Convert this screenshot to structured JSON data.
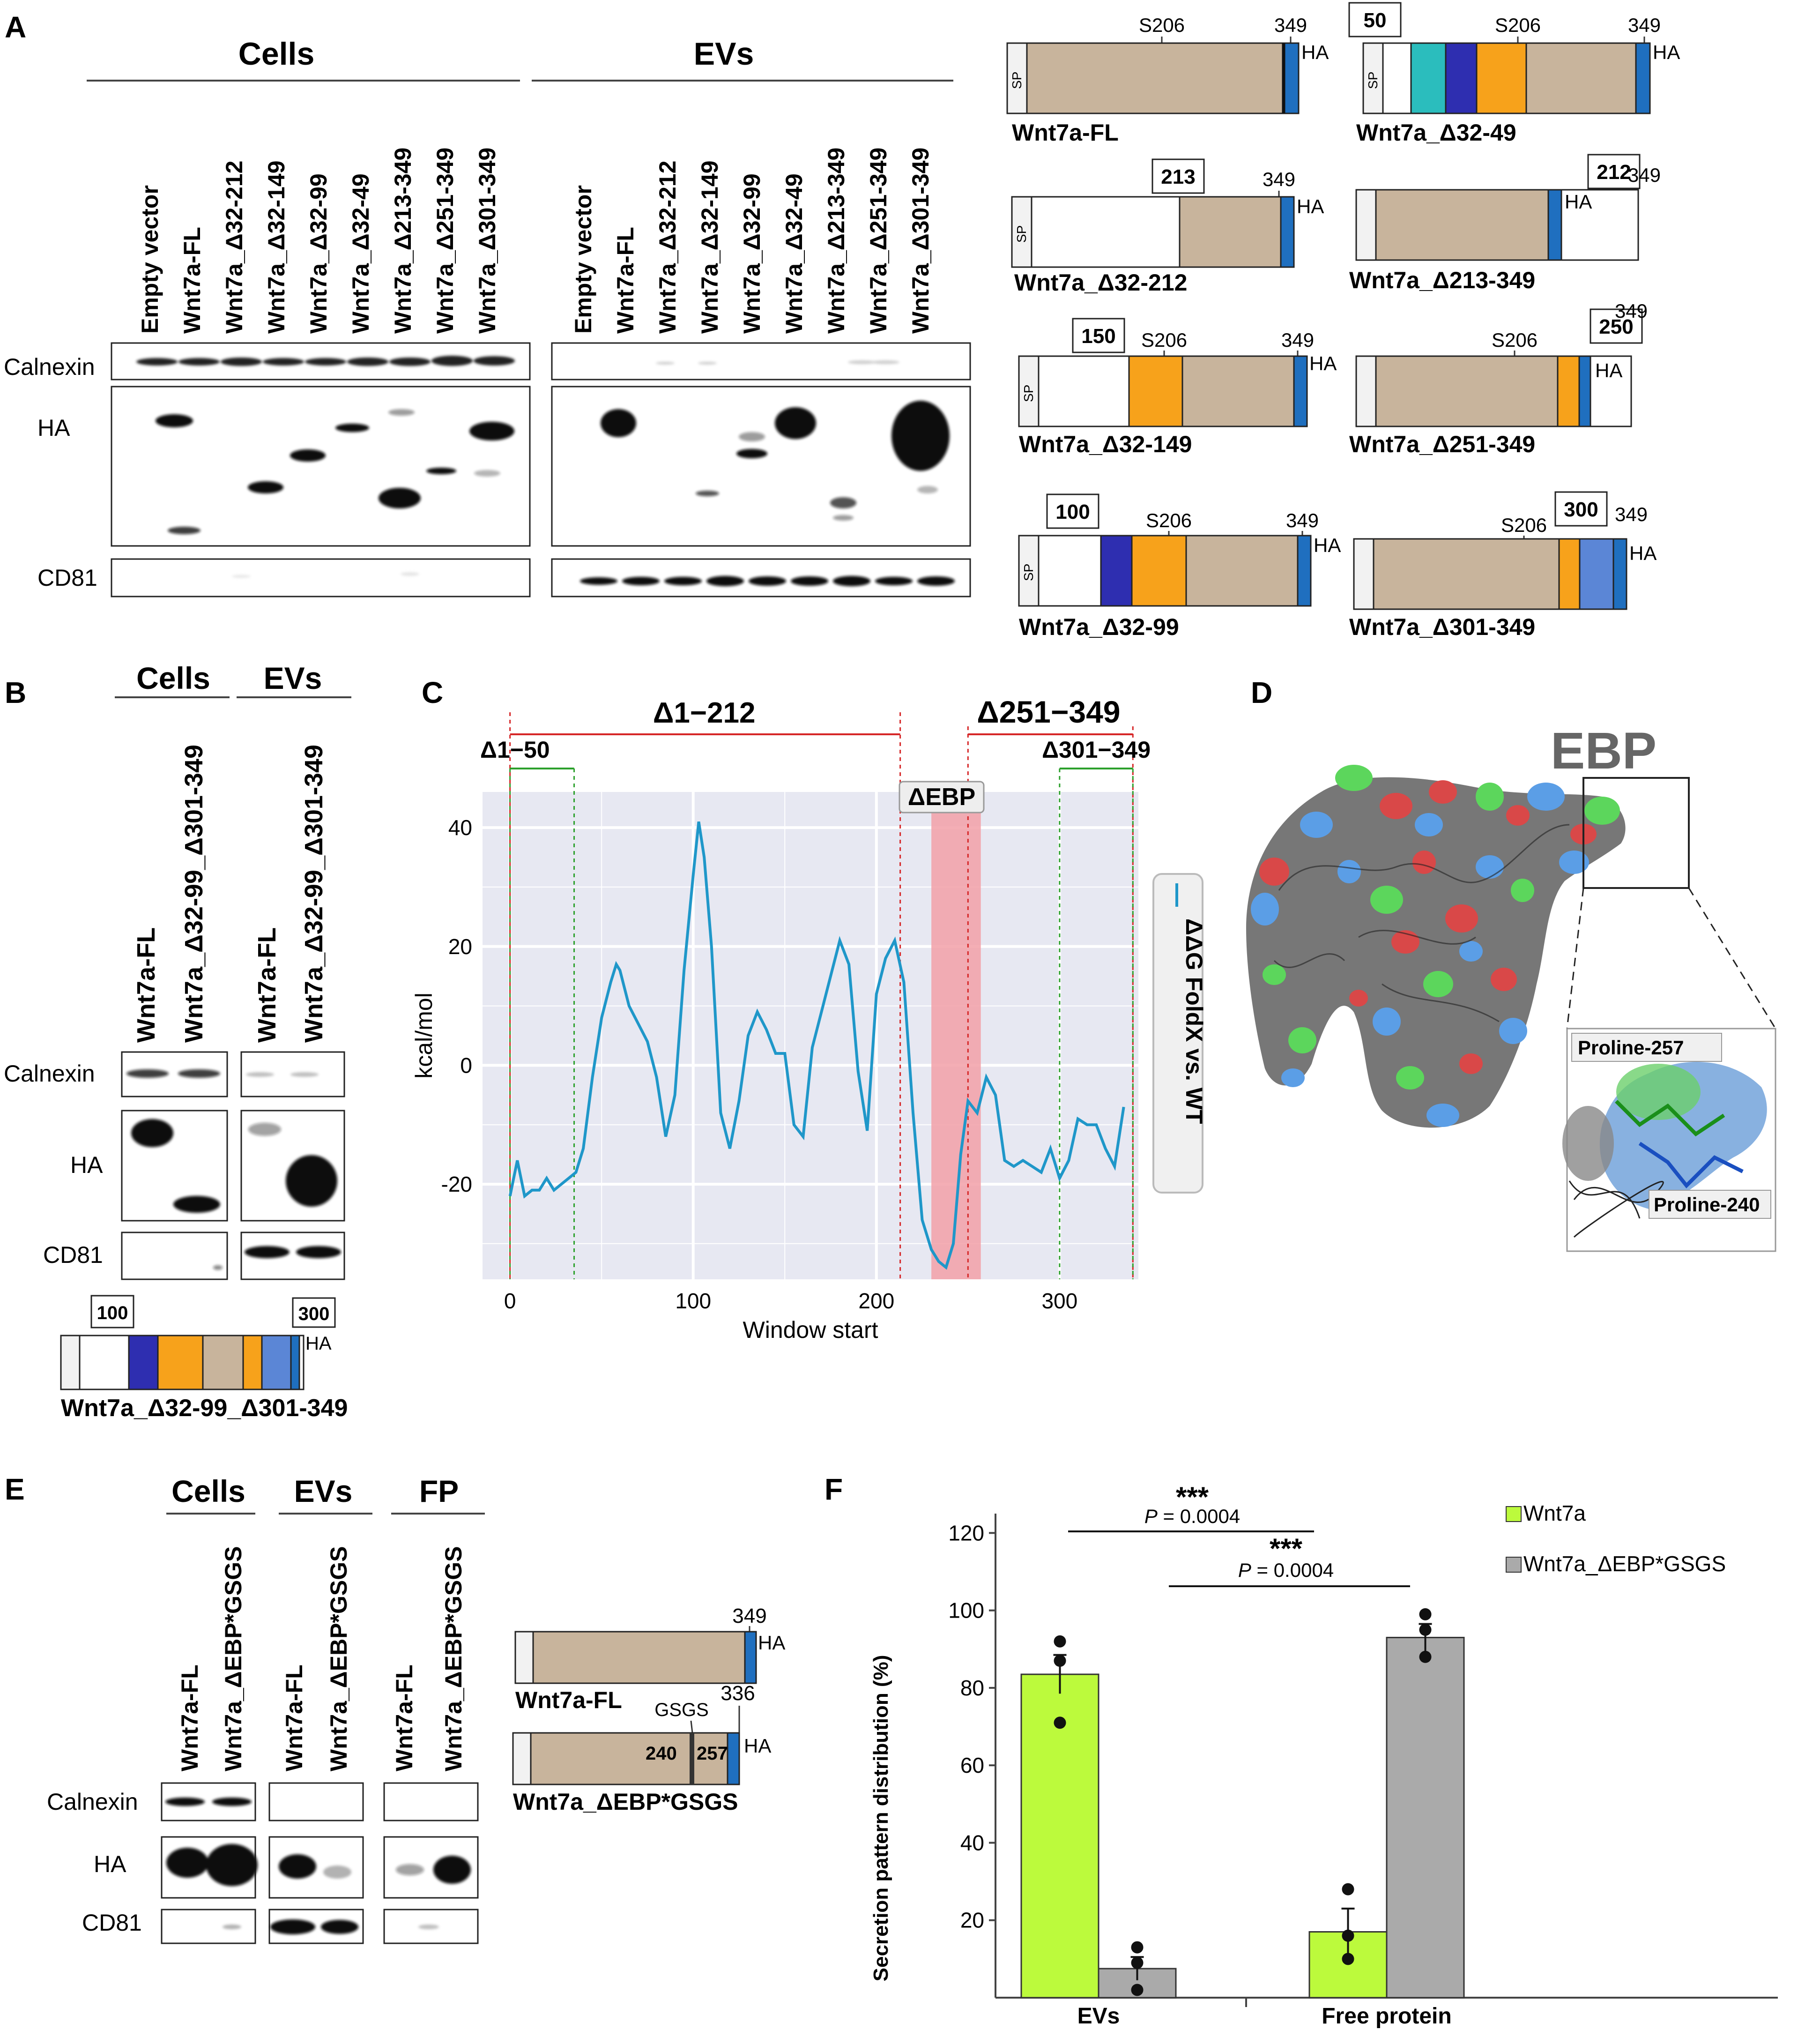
{
  "panel_letters": [
    "A",
    "B",
    "C",
    "D",
    "E",
    "F"
  ],
  "A": {
    "cells_header": "Cells",
    "evs_header": "EVs",
    "lanes": [
      "Empty vector",
      "Wnt7a-FL",
      "Wnt7a_Δ32-212",
      "Wnt7a_Δ32-149",
      "Wnt7a_Δ32-99",
      "Wnt7a_Δ32-49",
      "Wnt7a_Δ213-349",
      "Wnt7a_Δ251-349",
      "Wnt7a_Δ301-349"
    ],
    "blot_labels": [
      "Calnexin",
      "HA",
      "CD81"
    ],
    "constructs": [
      {
        "name": "Wnt7a-FL",
        "num": "",
        "s206": "S206",
        "end": "349"
      },
      {
        "name": "Wnt7a_Δ32-49",
        "num": "50",
        "s206": "S206",
        "end": "349"
      },
      {
        "name": "Wnt7a_Δ32-212",
        "num": "213",
        "s206": "",
        "end": "349"
      },
      {
        "name": "Wnt7a_Δ213-349",
        "num": "212",
        "s206": "",
        "end": "349"
      },
      {
        "name": "Wnt7a_Δ32-149",
        "num": "150",
        "s206": "S206",
        "end": "349"
      },
      {
        "name": "Wnt7a_Δ251-349",
        "num": "250",
        "s206": "S206",
        "end": "349"
      },
      {
        "name": "Wnt7a_Δ32-99",
        "num": "100",
        "s206": "S206",
        "end": "349"
      },
      {
        "name": "Wnt7a_Δ301-349",
        "num": "300",
        "s206": "S206",
        "end": "349"
      }
    ],
    "sp": "SP",
    "ha": "HA"
  },
  "B": {
    "cells_header": "Cells",
    "evs_header": "EVs",
    "lanes": [
      "Wnt7a-FL",
      "Wnt7a_Δ32-99_Δ301-349"
    ],
    "blot_labels": [
      "Calnexin",
      "HA",
      "CD81"
    ],
    "construct": {
      "name": "Wnt7a_Δ32-99_Δ301-349",
      "num1": "100",
      "num2": "300"
    }
  },
  "chart_data": {
    "type": "line",
    "title": "",
    "xlabel": "Window start",
    "ylabel": "kcal/mol",
    "xlim": [
      -15,
      343
    ],
    "ylim": [
      -36,
      46
    ],
    "xticks": [
      0,
      100,
      200,
      300
    ],
    "yticks": [
      40,
      20,
      0,
      -20
    ],
    "grid": true,
    "legend": "right",
    "series": [
      {
        "name": "ΔΔG FoldX vs. WT",
        "x": [
          0,
          4,
          8,
          12,
          16,
          20,
          24,
          28,
          32,
          36,
          40,
          45,
          50,
          55,
          58,
          60,
          65,
          70,
          75,
          80,
          85,
          90,
          95,
          100,
          103,
          106,
          110,
          115,
          120,
          125,
          130,
          135,
          140,
          145,
          150,
          155,
          160,
          165,
          170,
          175,
          180,
          185,
          190,
          195,
          200,
          205,
          210,
          215,
          220,
          225,
          230,
          234,
          238,
          242,
          246,
          250,
          255,
          260,
          265,
          270,
          275,
          280,
          285,
          290,
          295,
          300,
          305,
          310,
          315,
          320,
          325,
          330,
          335
        ],
        "y": [
          -22,
          -16,
          -22,
          -21,
          -21,
          -19,
          -21,
          -20,
          -19,
          -18,
          -14,
          -2,
          8,
          14,
          17,
          16,
          10,
          7,
          4,
          -2,
          -12,
          -5,
          16,
          32,
          41,
          35,
          20,
          -8,
          -14,
          -6,
          5,
          9,
          6,
          2,
          2,
          -10,
          -12,
          3,
          9,
          15,
          21,
          17,
          -1,
          -11,
          12,
          18,
          21,
          14,
          -8,
          -26,
          -31,
          -33,
          -34,
          -30,
          -15,
          -6,
          -8,
          -2,
          -5,
          -16,
          -17,
          -16,
          -17,
          -18,
          -14,
          -19,
          -16,
          -9,
          -10,
          -10,
          -14,
          -17,
          -7
        ]
      }
    ],
    "region_labels": {
      "d1_212": "Δ1−212",
      "d251_349": "Δ251−349",
      "d1_50": "Δ1−50",
      "d301_349": "Δ301−349",
      "debp": "ΔEBP"
    }
  },
  "D": {
    "ebp_label": "EBP",
    "proline_257": "Proline-257",
    "proline_240": "Proline-240"
  },
  "E": {
    "cells_header": "Cells",
    "evs_header": "EVs",
    "fp_header": "FP",
    "lanes": [
      "Wnt7a-FL",
      "Wnt7a_ΔEBP*GSGS"
    ],
    "blot_labels": [
      "Calnexin",
      "HA",
      "CD81"
    ],
    "fl": {
      "name": "Wnt7a-FL",
      "end": "349"
    },
    "ebp": {
      "name": "Wnt7a_ΔEBP*GSGS",
      "end": "336",
      "gsgs": "GSGS",
      "n240": "240",
      "n257": "257"
    }
  },
  "F": {
    "chart_type": "bar",
    "ylabel": "Secretion pattern distribution (%)",
    "categories": [
      "EVs",
      "Free protein"
    ],
    "series": [
      {
        "name": "Wnt7a",
        "values": [
          83.5,
          17
        ],
        "error": [
          5,
          6
        ],
        "points": [
          [
            92,
            87,
            71
          ],
          [
            28,
            16,
            10
          ]
        ],
        "color": "#bcfa3c"
      },
      {
        "name": "Wnt7a_ΔEBP*GSGS",
        "values": [
          7.5,
          93
        ],
        "error": [
          3,
          3.5
        ],
        "points": [
          [
            13,
            9,
            2
          ],
          [
            99,
            95,
            88
          ]
        ],
        "color": "#aaaaaa"
      }
    ],
    "yticks": [
      20,
      40,
      60,
      80,
      100,
      120
    ],
    "sig1": {
      "stars": "***",
      "p": "= 0.0004"
    },
    "sig2": {
      "stars": "***",
      "p": "= 0.0004"
    },
    "p_italic": "P"
  }
}
